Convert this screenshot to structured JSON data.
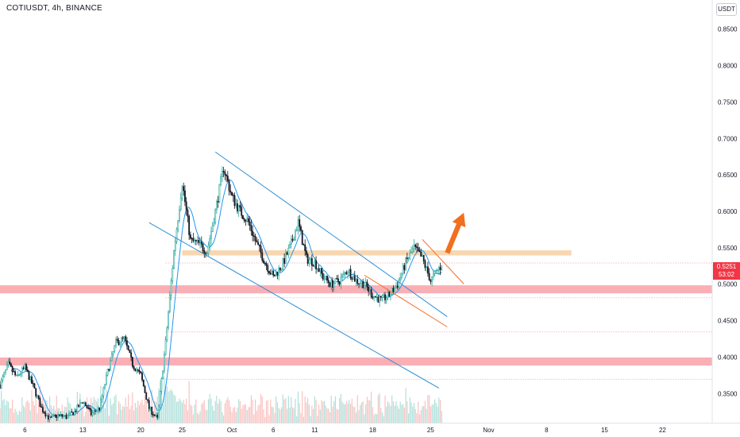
{
  "header": {
    "symbol_line": "COTIUSDT, 4h, BINANCE",
    "unit": "USDT"
  },
  "price_tag": {
    "price": "0.5251",
    "countdown": "53:02"
  },
  "colors": {
    "up": "#26a69a",
    "down": "#131722",
    "ma": "#2196f3",
    "zone_red": "#f9a6ad",
    "zone_orange": "#f7cfa3",
    "channel_blue": "#2d8fd5",
    "channel_orange": "#f26f2a",
    "arrow": "#f26f1f",
    "dotted": "#f5a3a3"
  },
  "chart_data": {
    "type": "candlestick",
    "title": "COTIUSDT, 4h, BINANCE",
    "ylabel": "USDT",
    "ylim": [
      0.31,
      0.89
    ],
    "y_ticks": [
      "0.8500",
      "0.8000",
      "0.7500",
      "0.7000",
      "0.6500",
      "0.6000",
      "0.5500",
      "0.5000",
      "0.4500",
      "0.4000",
      "0.3500"
    ],
    "x_tick_labels": [
      {
        "label": "6",
        "date": "2021-09-06"
      },
      {
        "label": "13",
        "date": "2021-09-13"
      },
      {
        "label": "20",
        "date": "2021-09-20"
      },
      {
        "label": "25",
        "date": "2021-09-25"
      },
      {
        "label": "Oct",
        "date": "2021-10-01"
      },
      {
        "label": "6",
        "date": "2021-10-06"
      },
      {
        "label": "11",
        "date": "2021-10-11"
      },
      {
        "label": "18",
        "date": "2021-10-18"
      },
      {
        "label": "25",
        "date": "2021-10-25"
      },
      {
        "label": "Nov",
        "date": "2021-11-01"
      },
      {
        "label": "8",
        "date": "2021-11-08"
      },
      {
        "label": "15",
        "date": "2021-11-15"
      },
      {
        "label": "22",
        "date": "2021-11-22"
      }
    ],
    "x_range": [
      "2021-09-03",
      "2021-11-28"
    ],
    "last_price": 0.5251,
    "price_path": [
      [
        "2021-09-03",
        0.362
      ],
      [
        "2021-09-04",
        0.39
      ],
      [
        "2021-09-05",
        0.372
      ],
      [
        "2021-09-06",
        0.386
      ],
      [
        "2021-09-07",
        0.36
      ],
      [
        "2021-09-08",
        0.33
      ],
      [
        "2021-09-09",
        0.315
      ],
      [
        "2021-09-10",
        0.32
      ],
      [
        "2021-09-11",
        0.318
      ],
      [
        "2021-09-12",
        0.325
      ],
      [
        "2021-09-13",
        0.34
      ],
      [
        "2021-09-14",
        0.322
      ],
      [
        "2021-09-15",
        0.33
      ],
      [
        "2021-09-16",
        0.38
      ],
      [
        "2021-09-17",
        0.42
      ],
      [
        "2021-09-18",
        0.425
      ],
      [
        "2021-09-19",
        0.39
      ],
      [
        "2021-09-20",
        0.375
      ],
      [
        "2021-09-21",
        0.33
      ],
      [
        "2021-09-22",
        0.315
      ],
      [
        "2021-09-23",
        0.42
      ],
      [
        "2021-09-24",
        0.545
      ],
      [
        "2021-09-25",
        0.64
      ],
      [
        "2021-09-26",
        0.56
      ],
      [
        "2021-09-27",
        0.555
      ],
      [
        "2021-09-28",
        0.545
      ],
      [
        "2021-09-29",
        0.6
      ],
      [
        "2021-09-30",
        0.66
      ],
      [
        "2021-10-01",
        0.62
      ],
      [
        "2021-10-02",
        0.6
      ],
      [
        "2021-10-03",
        0.585
      ],
      [
        "2021-10-04",
        0.555
      ],
      [
        "2021-10-05",
        0.53
      ],
      [
        "2021-10-06",
        0.51
      ],
      [
        "2021-10-07",
        0.525
      ],
      [
        "2021-10-08",
        0.55
      ],
      [
        "2021-10-09",
        0.585
      ],
      [
        "2021-10-10",
        0.535
      ],
      [
        "2021-10-11",
        0.53
      ],
      [
        "2021-10-12",
        0.51
      ],
      [
        "2021-10-13",
        0.5
      ],
      [
        "2021-10-14",
        0.505
      ],
      [
        "2021-10-15",
        0.52
      ],
      [
        "2021-10-16",
        0.505
      ],
      [
        "2021-10-17",
        0.5
      ],
      [
        "2021-10-18",
        0.485
      ],
      [
        "2021-10-19",
        0.478
      ],
      [
        "2021-10-20",
        0.485
      ],
      [
        "2021-10-21",
        0.5
      ],
      [
        "2021-10-22",
        0.53
      ],
      [
        "2021-10-23",
        0.55
      ],
      [
        "2021-10-24",
        0.535
      ],
      [
        "2021-10-25",
        0.505
      ],
      [
        "2021-10-26",
        0.522
      ],
      [
        "2021-10-26T08",
        0.5251
      ]
    ],
    "horizontal_zones": [
      {
        "from": 0.4875,
        "to": 0.4985,
        "color": "zone_red"
      },
      {
        "from": 0.3885,
        "to": 0.3995,
        "color": "zone_red"
      },
      {
        "from": 0.5395,
        "to": 0.5465,
        "color": "zone_orange"
      }
    ],
    "dotted_levels": [
      0.5291,
      0.4815,
      0.4345,
      0.3695
    ],
    "trendlines": [
      {
        "color": "channel_blue",
        "from": [
          "2021-09-29",
          0.6815
        ],
        "to": [
          "2021-10-27",
          0.4555
        ]
      },
      {
        "color": "channel_blue",
        "from": [
          "2021-09-21",
          0.5845
        ],
        "to": [
          "2021-10-26",
          0.3575
        ]
      },
      {
        "color": "channel_orange",
        "from": [
          "2021-10-24",
          0.5615
        ],
        "to": [
          "2021-10-29",
          0.5005
        ]
      },
      {
        "color": "channel_orange",
        "from": [
          "2021-10-17",
          0.5125
        ],
        "to": [
          "2021-10-27",
          0.4415
        ]
      }
    ],
    "arrow": {
      "from": [
        "2021-10-27",
        0.543
      ],
      "to": [
        "2021-10-29",
        0.598
      ]
    }
  }
}
